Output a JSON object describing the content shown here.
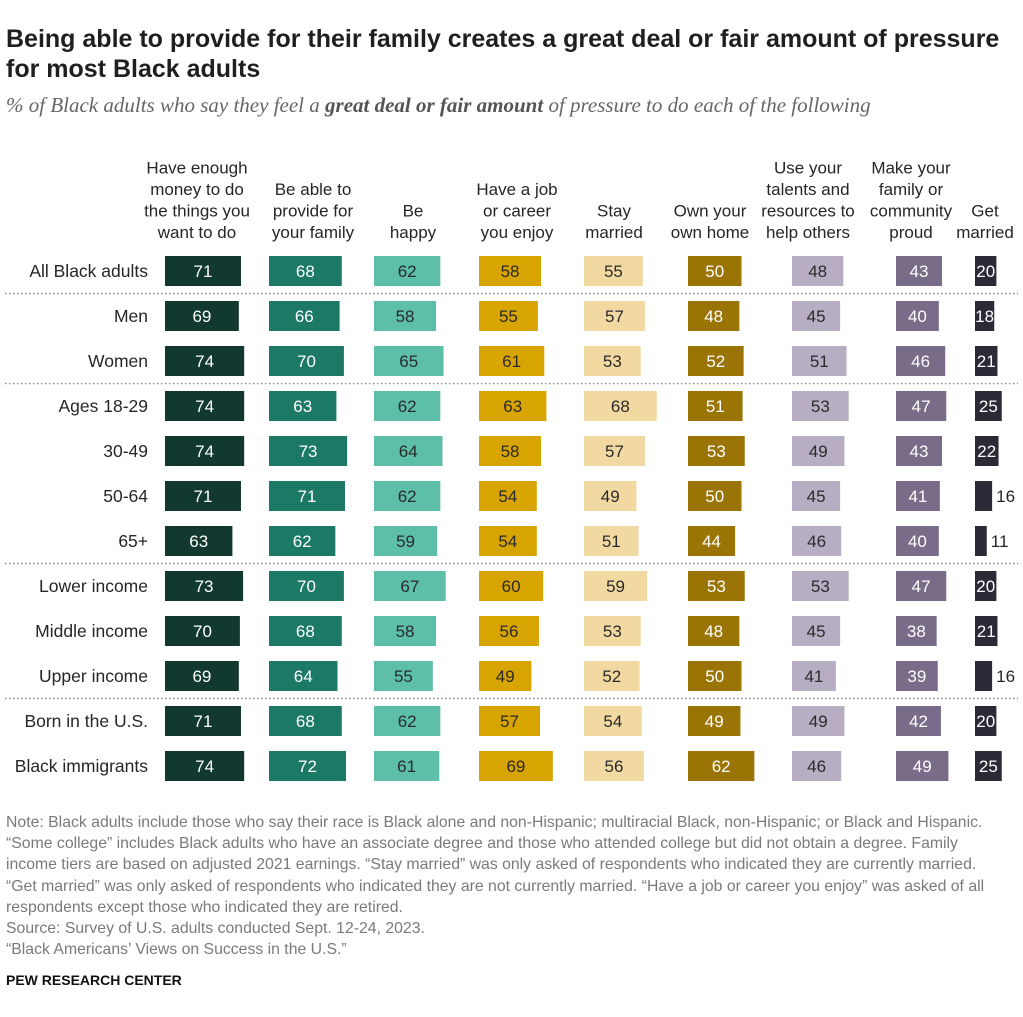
{
  "chart_data": {
    "type": "bar",
    "title": "Being able to provide for their family creates a great deal or fair amount of pressure for most Black adults",
    "subtitle": {
      "prefix": "% of Black adults who say they feel a ",
      "emphasis": "great deal or fair amount",
      "suffix": " of pressure to do each of the following"
    },
    "xlim": [
      0,
      100
    ],
    "categories": [
      "All Black adults",
      "Men",
      "Women",
      "Ages 18-29",
      "30-49",
      "50-64",
      "65+",
      "Lower income",
      "Middle income",
      "Upper income",
      "Born in the U.S.",
      "Black immigrants"
    ],
    "group_breaks_after": [
      0,
      2,
      6,
      9
    ],
    "outside_label_color": "#262626",
    "series": [
      {
        "name_lines": [
          "Have enough",
          "money to do",
          "the things you",
          "want to do"
        ],
        "color": "#12392f",
        "label_color": "#ffffff",
        "values": [
          71,
          69,
          74,
          74,
          74,
          71,
          63,
          73,
          70,
          69,
          71,
          74
        ]
      },
      {
        "name_lines": [
          "Be able to",
          "provide for",
          "your family"
        ],
        "color": "#1b7966",
        "label_color": "#ffffff",
        "values": [
          68,
          66,
          70,
          63,
          73,
          71,
          62,
          70,
          68,
          64,
          68,
          72
        ]
      },
      {
        "name_lines": [
          "Be",
          "happy"
        ],
        "color": "#5dbfa8",
        "label_color": "#2a2a2a",
        "values": [
          62,
          58,
          65,
          62,
          64,
          62,
          59,
          67,
          58,
          55,
          62,
          61
        ]
      },
      {
        "name_lines": [
          "Have a job",
          "or career",
          "you enjoy"
        ],
        "color": "#d7a400",
        "label_color": "#2a2a2a",
        "values": [
          58,
          55,
          61,
          63,
          58,
          54,
          54,
          60,
          56,
          49,
          57,
          69
        ]
      },
      {
        "name_lines": [
          "Stay",
          "married"
        ],
        "color": "#f2d9a1",
        "label_color": "#2a2a2a",
        "values": [
          55,
          57,
          53,
          68,
          57,
          49,
          51,
          59,
          53,
          52,
          54,
          56
        ]
      },
      {
        "name_lines": [
          "Own your",
          "own home"
        ],
        "color": "#9b7406",
        "label_color": "#ffffff",
        "values": [
          50,
          48,
          52,
          51,
          53,
          50,
          44,
          53,
          48,
          50,
          49,
          62
        ]
      },
      {
        "name_lines": [
          "Use your",
          "talents and",
          "resources to",
          "help others"
        ],
        "color": "#b8aec4",
        "label_color": "#2a2a2a",
        "values": [
          48,
          45,
          51,
          53,
          49,
          45,
          46,
          53,
          45,
          41,
          49,
          46
        ]
      },
      {
        "name_lines": [
          "Make your",
          "family or",
          "community",
          "proud"
        ],
        "color": "#796c88",
        "label_color": "#ffffff",
        "values": [
          43,
          40,
          46,
          47,
          43,
          41,
          40,
          47,
          38,
          39,
          42,
          49
        ]
      },
      {
        "name_lines": [
          "Get",
          "married"
        ],
        "color": "#2e2937",
        "label_color": "#ffffff",
        "values": [
          20,
          18,
          21,
          25,
          22,
          16,
          11,
          20,
          21,
          16,
          20,
          25
        ]
      }
    ]
  },
  "notes": [
    "Note: Black adults include those who say their race is Black alone and non-Hispanic; multiracial Black, non-Hispanic; or Black and Hispanic.",
    "“Some college” includes Black adults who have an associate degree and those who attended college but did not obtain a degree. Family",
    "income tiers are based on adjusted 2021 earnings. “Stay married” was only asked of respondents who indicated they are currently married.",
    "“Get married” was only asked of respondents who indicated they are not currently married. “Have a job or career you enjoy” was asked of all",
    "respondents except those who indicated they are retired."
  ],
  "source": "Source: Survey of U.S. adults conducted Sept. 12-24, 2023.",
  "report": "“Black Americans’ Views on Success in the U.S.”",
  "brand": "PEW RESEARCH CENTER"
}
